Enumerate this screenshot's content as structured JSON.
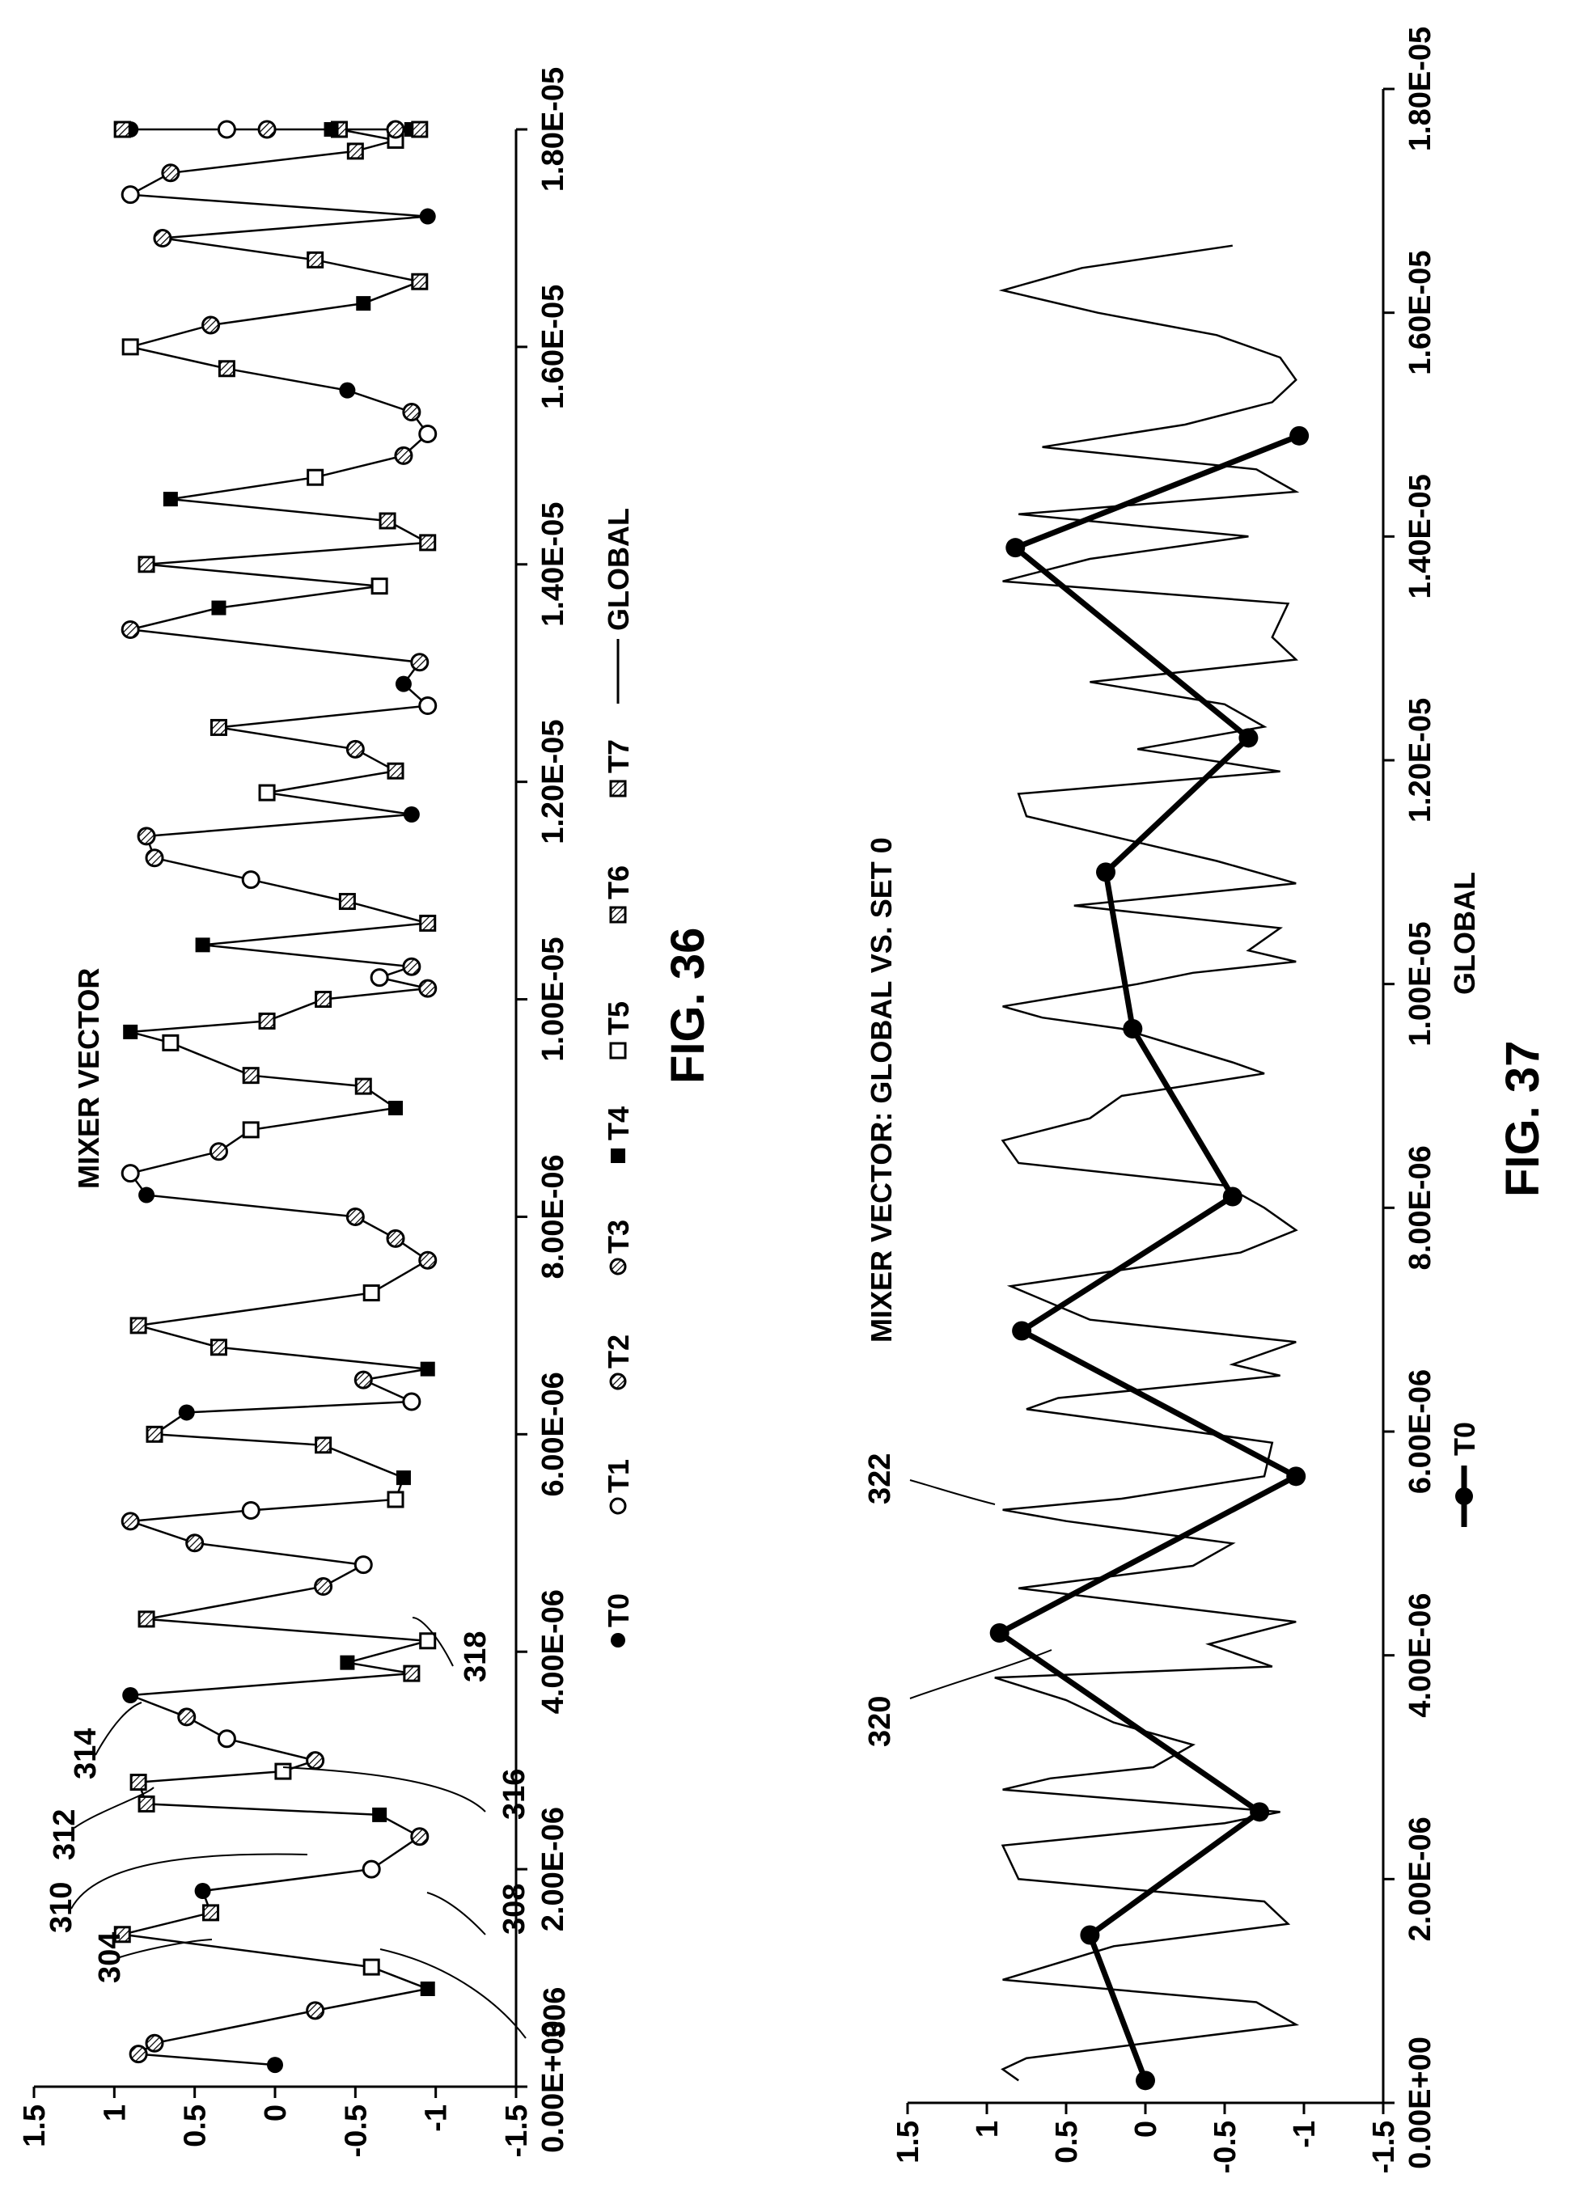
{
  "figures": [
    {
      "figure_label": "FIG. 36",
      "title": "MIXER VECTOR",
      "reference_numerals": [
        "304",
        "306",
        "308",
        "310",
        "312",
        "314",
        "316",
        "318"
      ],
      "legend": [
        {
          "label": "T0",
          "marker": "filled-circle"
        },
        {
          "label": "T1",
          "marker": "open-circle"
        },
        {
          "label": "T2",
          "marker": "hatched-circle"
        },
        {
          "label": "T3",
          "marker": "hatched-circle"
        },
        {
          "label": "T4",
          "marker": "filled-square"
        },
        {
          "label": "T5",
          "marker": "open-square"
        },
        {
          "label": "T6",
          "marker": "hatched-square"
        },
        {
          "label": "T7",
          "marker": "hatched-square"
        },
        {
          "label": "GLOBAL",
          "marker": "line"
        }
      ]
    },
    {
      "figure_label": "FIG. 37",
      "title": "MIXER VECTOR: GLOBAL VS. SET 0",
      "reference_numerals": [
        "320",
        "322"
      ],
      "legend": [
        {
          "label": "T0",
          "marker": "line-filled-circle"
        },
        {
          "label": "GLOBAL",
          "marker": "line"
        }
      ]
    }
  ],
  "chart_data": [
    {
      "type": "line",
      "orientation": "rotated-90-counterclockwise",
      "title": "MIXER VECTOR",
      "xlim": [
        0,
        1.8e-05
      ],
      "ylim": [
        -1.5,
        1.5
      ],
      "x_ticks": [
        "0.00E+00",
        "2.00E-06",
        "4.00E-06",
        "6.00E-06",
        "8.00E-06",
        "1.00E-05",
        "1.20E-05",
        "1.40E-05",
        "1.60E-05",
        "1.80E-05"
      ],
      "y_ticks": [
        "1.5",
        "1",
        "0.5",
        "0",
        "-0.5",
        "-1",
        "-1.5"
      ],
      "x_tick_values": [
        0,
        2e-06,
        4e-06,
        6e-06,
        8e-06,
        1e-05,
        1.2e-05,
        1.4e-05,
        1.6e-05,
        1.8e-05
      ],
      "y_tick_values": [
        1.5,
        1,
        0.5,
        0,
        -0.5,
        -1,
        -1.5
      ],
      "markers": [
        "T0",
        "T2",
        "T2",
        "T3",
        "T4",
        "T5",
        "T6",
        "T7",
        "T0",
        "T1",
        "T3",
        "T4",
        "T6",
        "T7",
        "T5",
        "T2",
        "T1",
        "T3",
        "T0",
        "T7",
        "T4",
        "T5",
        "T6",
        "T2",
        "T1",
        "T3",
        "T2",
        "T1",
        "T5",
        "T4",
        "T6",
        "T7",
        "T0",
        "T1",
        "T2",
        "T4",
        "T6",
        "T7",
        "T5",
        "T3",
        "T2",
        "T3",
        "T0",
        "T1",
        "T3",
        "T5",
        "T4",
        "T6",
        "T7",
        "T5",
        "T4",
        "T6",
        "T7",
        "T3",
        "T1",
        "T2",
        "T4",
        "T6",
        "T7",
        "T1",
        "T3",
        "T2",
        "T0",
        "T5",
        "T7",
        "T3",
        "T6",
        "T1",
        "T0",
        "T2",
        "T3",
        "T4",
        "T5",
        "T6",
        "T7",
        "T7",
        "T4",
        "T5",
        "T3",
        "T1",
        "T2",
        "T0",
        "T6",
        "T5",
        "T3",
        "T4",
        "T6",
        "T7",
        "T3",
        "T0",
        "T1",
        "T2",
        "T7",
        "T5",
        "T6",
        "T4",
        "T0",
        "T1",
        "T3",
        "T2",
        "T4",
        "T5",
        "T7",
        "T7"
      ],
      "x": [
        2e-07,
        3e-07,
        4e-07,
        7e-07,
        9e-07,
        1.1e-06,
        1.4e-06,
        1.6e-06,
        1.8e-06,
        2e-06,
        2.3e-06,
        2.5e-06,
        2.6e-06,
        2.8e-06,
        2.9e-06,
        3e-06,
        3.2e-06,
        3.4e-06,
        3.6e-06,
        3.8e-06,
        3.9e-06,
        4.1e-06,
        4.3e-06,
        4.6e-06,
        4.8e-06,
        5e-06,
        5.2e-06,
        5.3e-06,
        5.4e-06,
        5.6e-06,
        5.9e-06,
        6e-06,
        6.2e-06,
        6.3e-06,
        6.5e-06,
        6.6e-06,
        6.8e-06,
        7e-06,
        7.3e-06,
        7.6e-06,
        7.8e-06,
        8e-06,
        8.2e-06,
        8.4e-06,
        8.6e-06,
        8.8e-06,
        9e-06,
        9.2e-06,
        9.3e-06,
        9.6e-06,
        9.7e-06,
        9.8e-06,
        1e-05,
        1.01e-05,
        1.02e-05,
        1.03e-05,
        1.05e-05,
        1.07e-05,
        1.09e-05,
        1.11e-05,
        1.13e-05,
        1.15e-05,
        1.17e-05,
        1.19e-05,
        1.21e-05,
        1.23e-05,
        1.25e-05,
        1.27e-05,
        1.29e-05,
        1.31e-05,
        1.34e-05,
        1.36e-05,
        1.38e-05,
        1.4e-05,
        1.42e-05,
        1.44e-05,
        1.46e-05,
        1.48e-05,
        1.5e-05,
        1.52e-05,
        1.54e-05,
        1.56e-05,
        1.58e-05,
        1.6e-05,
        1.62e-05,
        1.64e-05,
        1.66e-05,
        1.68e-05,
        1.7e-05,
        1.72e-05,
        1.74e-05,
        1.76e-05,
        1.78e-05,
        1.79e-05,
        1.8e-05,
        1.8e-05,
        1.8e-05,
        1.8e-05,
        1.8e-05,
        1.8e-05,
        1.8e-05,
        1.8e-05,
        1.8e-05,
        1.8e-05
      ],
      "y": [
        0,
        0.85,
        0.75,
        -0.25,
        -0.95,
        -0.6,
        0.95,
        0.4,
        0.45,
        -0.6,
        -0.9,
        -0.65,
        0.8,
        0.85,
        -0.05,
        -0.25,
        0.3,
        0.55,
        0.9,
        -0.85,
        -0.45,
        -0.95,
        0.8,
        -0.3,
        -0.55,
        0.5,
        0.9,
        0.15,
        -0.75,
        -0.8,
        -0.3,
        0.75,
        0.55,
        -0.85,
        -0.55,
        -0.95,
        0.35,
        0.85,
        -0.6,
        -0.95,
        -0.75,
        -0.5,
        0.8,
        0.9,
        0.35,
        0.15,
        -0.75,
        -0.55,
        0.15,
        0.65,
        0.9,
        0.05,
        -0.3,
        -0.95,
        -0.65,
        -0.85,
        0.45,
        -0.95,
        -0.45,
        0.15,
        0.75,
        0.8,
        -0.85,
        0.05,
        -0.75,
        -0.5,
        0.35,
        -0.95,
        -0.8,
        -0.9,
        0.9,
        0.35,
        -0.65,
        0.8,
        -0.95,
        -0.7,
        0.65,
        -0.25,
        -0.8,
        -0.95,
        -0.85,
        -0.45,
        0.3,
        0.9,
        0.4,
        -0.55,
        -0.9,
        -0.25,
        0.7,
        -0.95,
        0.9,
        0.65,
        -0.5,
        -0.75,
        -0.4,
        -0.35,
        0.9,
        0.3,
        -0.75,
        0.05,
        -0.85,
        0.95,
        -0.9,
        0.95
      ],
      "series": [
        {
          "name": "GLOBAL",
          "style": "line-with-markers"
        }
      ]
    },
    {
      "type": "line",
      "orientation": "rotated-90-counterclockwise",
      "title": "MIXER VECTOR: GLOBAL VS. SET 0",
      "xlim": [
        0,
        1.8e-05
      ],
      "ylim": [
        -1.5,
        1.5
      ],
      "x_ticks": [
        "0.00E+00",
        "2.00E-06",
        "4.00E-06",
        "6.00E-06",
        "8.00E-06",
        "1.00E-05",
        "1.20E-05",
        "1.40E-05",
        "1.60E-05",
        "1.80E-05"
      ],
      "y_ticks": [
        "1.5",
        "1",
        "0.5",
        "0",
        "-0.5",
        "-1",
        "-1.5"
      ],
      "x_tick_values": [
        0,
        2e-06,
        4e-06,
        6e-06,
        8e-06,
        1e-05,
        1.2e-05,
        1.4e-05,
        1.6e-05,
        1.8e-05
      ],
      "y_tick_values": [
        1.5,
        1,
        0.5,
        0,
        -0.5,
        -1,
        -1.5
      ],
      "series": [
        {
          "name": "T0",
          "style": "thick-line-filled-circle",
          "x": [
            2e-07,
            1.5e-06,
            2.6e-06,
            4.2e-06,
            5.6e-06,
            6.9e-06,
            8.1e-06,
            9.6e-06,
            1.1e-05,
            1.22e-05,
            1.39e-05,
            1.49e-05
          ],
          "y": [
            0,
            0.35,
            -0.72,
            0.92,
            -0.95,
            0.78,
            -0.55,
            0.08,
            0.25,
            -0.65,
            0.82,
            -0.97
          ]
        },
        {
          "name": "GLOBAL",
          "style": "thin-line",
          "x": [
            2e-07,
            3e-07,
            4e-07,
            7e-07,
            9e-07,
            1.1e-06,
            1.4e-06,
            1.6e-06,
            1.8e-06,
            2e-06,
            2.3e-06,
            2.5e-06,
            2.6e-06,
            2.8e-06,
            2.9e-06,
            3e-06,
            3.2e-06,
            3.4e-06,
            3.6e-06,
            3.8e-06,
            3.9e-06,
            4.1e-06,
            4.3e-06,
            4.6e-06,
            4.8e-06,
            5e-06,
            5.2e-06,
            5.3e-06,
            5.4e-06,
            5.6e-06,
            5.9e-06,
            6e-06,
            6.2e-06,
            6.3e-06,
            6.5e-06,
            6.6e-06,
            6.8e-06,
            7e-06,
            7.3e-06,
            7.6e-06,
            7.8e-06,
            8e-06,
            8.2e-06,
            8.4e-06,
            8.6e-06,
            8.8e-06,
            9e-06,
            9.2e-06,
            9.3e-06,
            9.6e-06,
            9.7e-06,
            9.8e-06,
            1e-05,
            1.01e-05,
            1.02e-05,
            1.03e-05,
            1.05e-05,
            1.07e-05,
            1.09e-05,
            1.11e-05,
            1.13e-05,
            1.15e-05,
            1.17e-05,
            1.19e-05,
            1.21e-05,
            1.23e-05,
            1.25e-05,
            1.27e-05,
            1.29e-05,
            1.31e-05,
            1.34e-05,
            1.36e-05,
            1.38e-05,
            1.4e-05,
            1.42e-05,
            1.44e-05,
            1.46e-05,
            1.48e-05,
            1.5e-05,
            1.52e-05,
            1.54e-05,
            1.56e-05,
            1.58e-05,
            1.6e-05,
            1.62e-05,
            1.64e-05,
            1.66e-05
          ],
          "y": [
            0.8,
            0.9,
            0.75,
            -0.95,
            -0.7,
            0.9,
            0.2,
            -0.9,
            -0.75,
            0.8,
            0.9,
            -0.5,
            -0.85,
            0.9,
            0.6,
            -0.05,
            -0.3,
            0.2,
            0.5,
            0.95,
            -0.8,
            -0.4,
            -0.95,
            0.8,
            -0.3,
            -0.55,
            0.5,
            0.9,
            0.15,
            -0.75,
            -0.8,
            -0.3,
            0.75,
            0.55,
            -0.85,
            -0.55,
            -0.95,
            0.35,
            0.85,
            -0.6,
            -0.95,
            -0.75,
            -0.5,
            0.8,
            0.9,
            0.35,
            0.15,
            -0.75,
            -0.55,
            0.15,
            0.65,
            0.9,
            0.05,
            -0.3,
            -0.95,
            -0.65,
            -0.85,
            0.45,
            -0.95,
            -0.45,
            0.15,
            0.75,
            0.8,
            -0.85,
            0.05,
            -0.75,
            -0.5,
            0.35,
            -0.95,
            -0.8,
            -0.9,
            0.9,
            0.35,
            -0.65,
            0.8,
            -0.95,
            -0.7,
            0.65,
            -0.25,
            -0.8,
            -0.95,
            -0.85,
            -0.45,
            0.3,
            0.9,
            0.4,
            -0.55
          ]
        }
      ]
    }
  ]
}
